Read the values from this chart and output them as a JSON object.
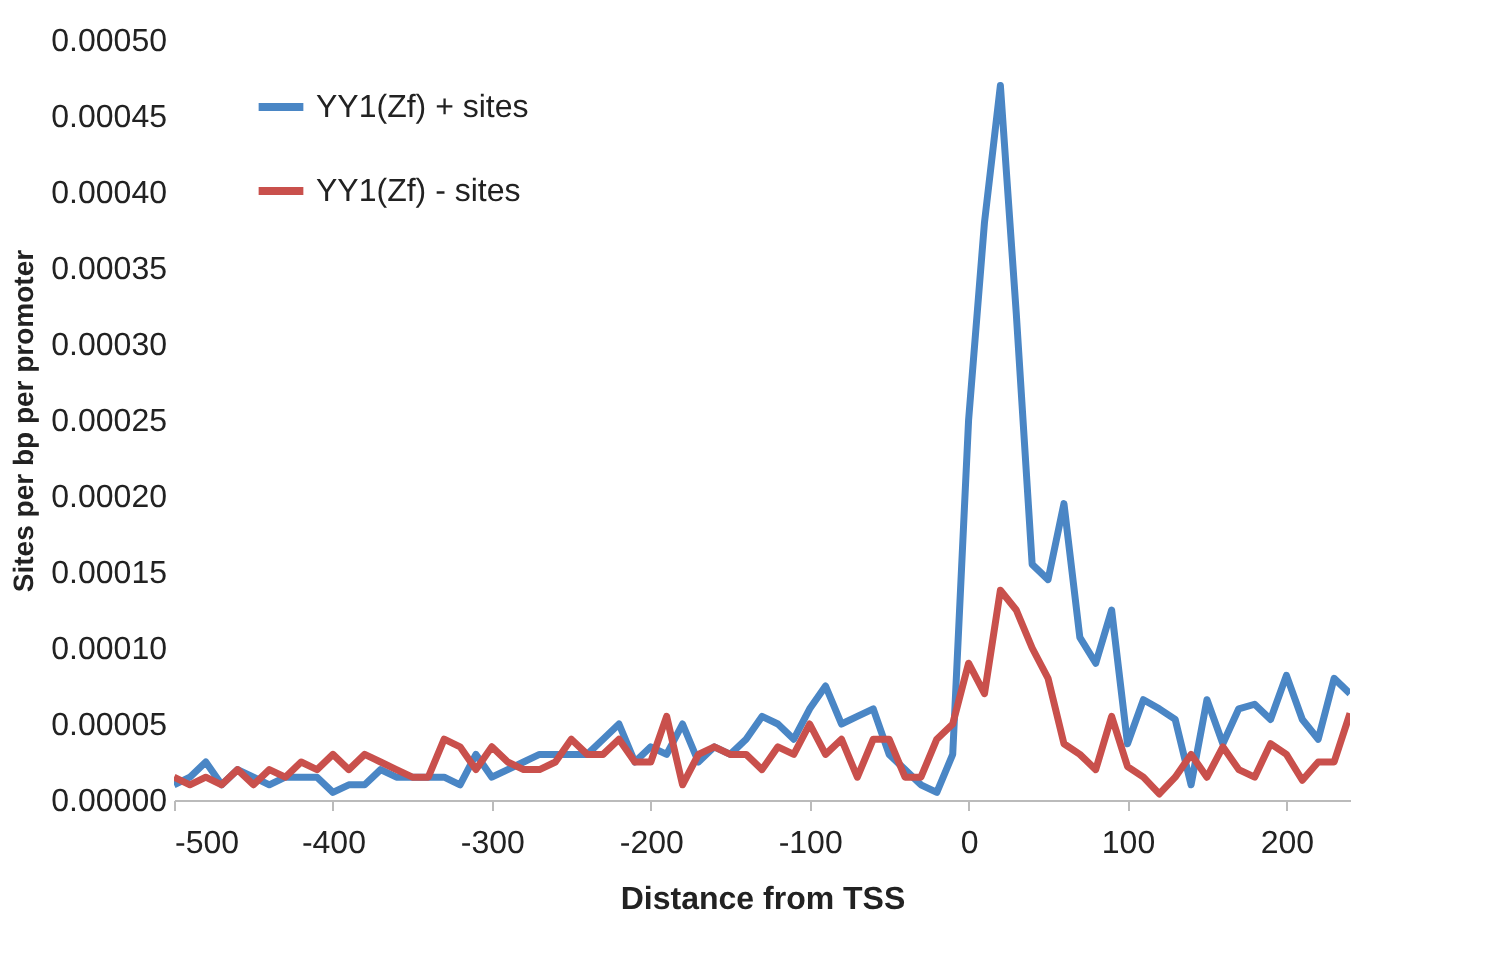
{
  "chart_data": {
    "type": "line",
    "xlabel": "Distance from TSS",
    "ylabel": "Sites per bp per promoter",
    "x": [
      -500,
      -490,
      -480,
      -470,
      -460,
      -450,
      -440,
      -430,
      -420,
      -410,
      -400,
      -390,
      -380,
      -370,
      -360,
      -350,
      -340,
      -330,
      -320,
      -310,
      -300,
      -290,
      -280,
      -270,
      -260,
      -250,
      -240,
      -230,
      -220,
      -210,
      -200,
      -190,
      -180,
      -170,
      -160,
      -150,
      -140,
      -130,
      -120,
      -110,
      -100,
      -90,
      -80,
      -70,
      -60,
      -50,
      -40,
      -30,
      -20,
      -10,
      0,
      10,
      20,
      30,
      40,
      50,
      60,
      70,
      80,
      90,
      100,
      110,
      120,
      130,
      140,
      150,
      160,
      170,
      180,
      190,
      200,
      210,
      220,
      230,
      240
    ],
    "series": [
      {
        "name": "YY1(Zf) + sites",
        "color": "#4a86c5",
        "values": [
          1e-05,
          1.5e-05,
          2.5e-05,
          1e-05,
          2e-05,
          1.5e-05,
          1e-05,
          1.5e-05,
          1.5e-05,
          1.5e-05,
          5e-06,
          1e-05,
          1e-05,
          2e-05,
          1.5e-05,
          1.5e-05,
          1.5e-05,
          1.5e-05,
          1e-05,
          3e-05,
          1.5e-05,
          2e-05,
          2.5e-05,
          3e-05,
          3e-05,
          3e-05,
          3e-05,
          4e-05,
          5e-05,
          2.5e-05,
          3.5e-05,
          3e-05,
          5e-05,
          2.5e-05,
          3.5e-05,
          3e-05,
          4e-05,
          5.5e-05,
          5e-05,
          4e-05,
          6e-05,
          7.5e-05,
          5e-05,
          5.5e-05,
          6e-05,
          3e-05,
          2e-05,
          1e-05,
          5e-06,
          3e-05,
          0.00025,
          0.00038,
          0.00047,
          0.00032,
          0.000155,
          0.000145,
          0.000195,
          0.000107,
          9e-05,
          0.000125,
          3.7e-05,
          6.6e-05,
          6e-05,
          5.3e-05,
          1e-05,
          6.6e-05,
          3.7e-05,
          6e-05,
          6.3e-05,
          5.3e-05,
          8.2e-05,
          5.3e-05,
          4e-05,
          8e-05,
          7e-05
        ]
      },
      {
        "name": "YY1(Zf) - sites",
        "color": "#c9504c",
        "values": [
          1.5e-05,
          1e-05,
          1.5e-05,
          1e-05,
          2e-05,
          1e-05,
          2e-05,
          1.5e-05,
          2.5e-05,
          2e-05,
          3e-05,
          2e-05,
          3e-05,
          2.5e-05,
          2e-05,
          1.5e-05,
          1.5e-05,
          4e-05,
          3.5e-05,
          2e-05,
          3.5e-05,
          2.5e-05,
          2e-05,
          2e-05,
          2.5e-05,
          4e-05,
          3e-05,
          3e-05,
          4e-05,
          2.5e-05,
          2.5e-05,
          5.5e-05,
          1e-05,
          3e-05,
          3.5e-05,
          3e-05,
          3e-05,
          2e-05,
          3.5e-05,
          3e-05,
          5e-05,
          3e-05,
          4e-05,
          1.5e-05,
          4e-05,
          4e-05,
          1.5e-05,
          1.5e-05,
          4e-05,
          5e-05,
          9e-05,
          7e-05,
          0.000138,
          0.000125,
          0.0001,
          8e-05,
          3.7e-05,
          3e-05,
          2e-05,
          5.5e-05,
          2.2e-05,
          1.5e-05,
          4e-06,
          1.5e-05,
          3e-05,
          1.5e-05,
          3.5e-05,
          2e-05,
          1.5e-05,
          3.7e-05,
          3e-05,
          1.3e-05,
          2.5e-05,
          2.5e-05,
          5.7e-05
        ]
      }
    ],
    "xlim": [
      -500,
      240
    ],
    "xticks": [
      -500,
      -400,
      -300,
      -200,
      -100,
      0,
      100,
      200
    ],
    "ylim": [
      0,
      0.0005
    ],
    "yticks": [
      {
        "value": 0,
        "label": "0.00000"
      },
      {
        "value": 5e-05,
        "label": "0.00005"
      },
      {
        "value": 0.0001,
        "label": "0.00010"
      },
      {
        "value": 0.00015,
        "label": "0.00015"
      },
      {
        "value": 0.0002,
        "label": "0.00020"
      },
      {
        "value": 0.00025,
        "label": "0.00025"
      },
      {
        "value": 0.0003,
        "label": "0.00030"
      },
      {
        "value": 0.00035,
        "label": "0.00035"
      },
      {
        "value": 0.0004,
        "label": "0.00040"
      },
      {
        "value": 0.00045,
        "label": "0.00045"
      },
      {
        "value": 0.0005,
        "label": "0.00050"
      }
    ],
    "grid": false,
    "legend": "top left",
    "marker": "none",
    "line_style": "solid"
  }
}
